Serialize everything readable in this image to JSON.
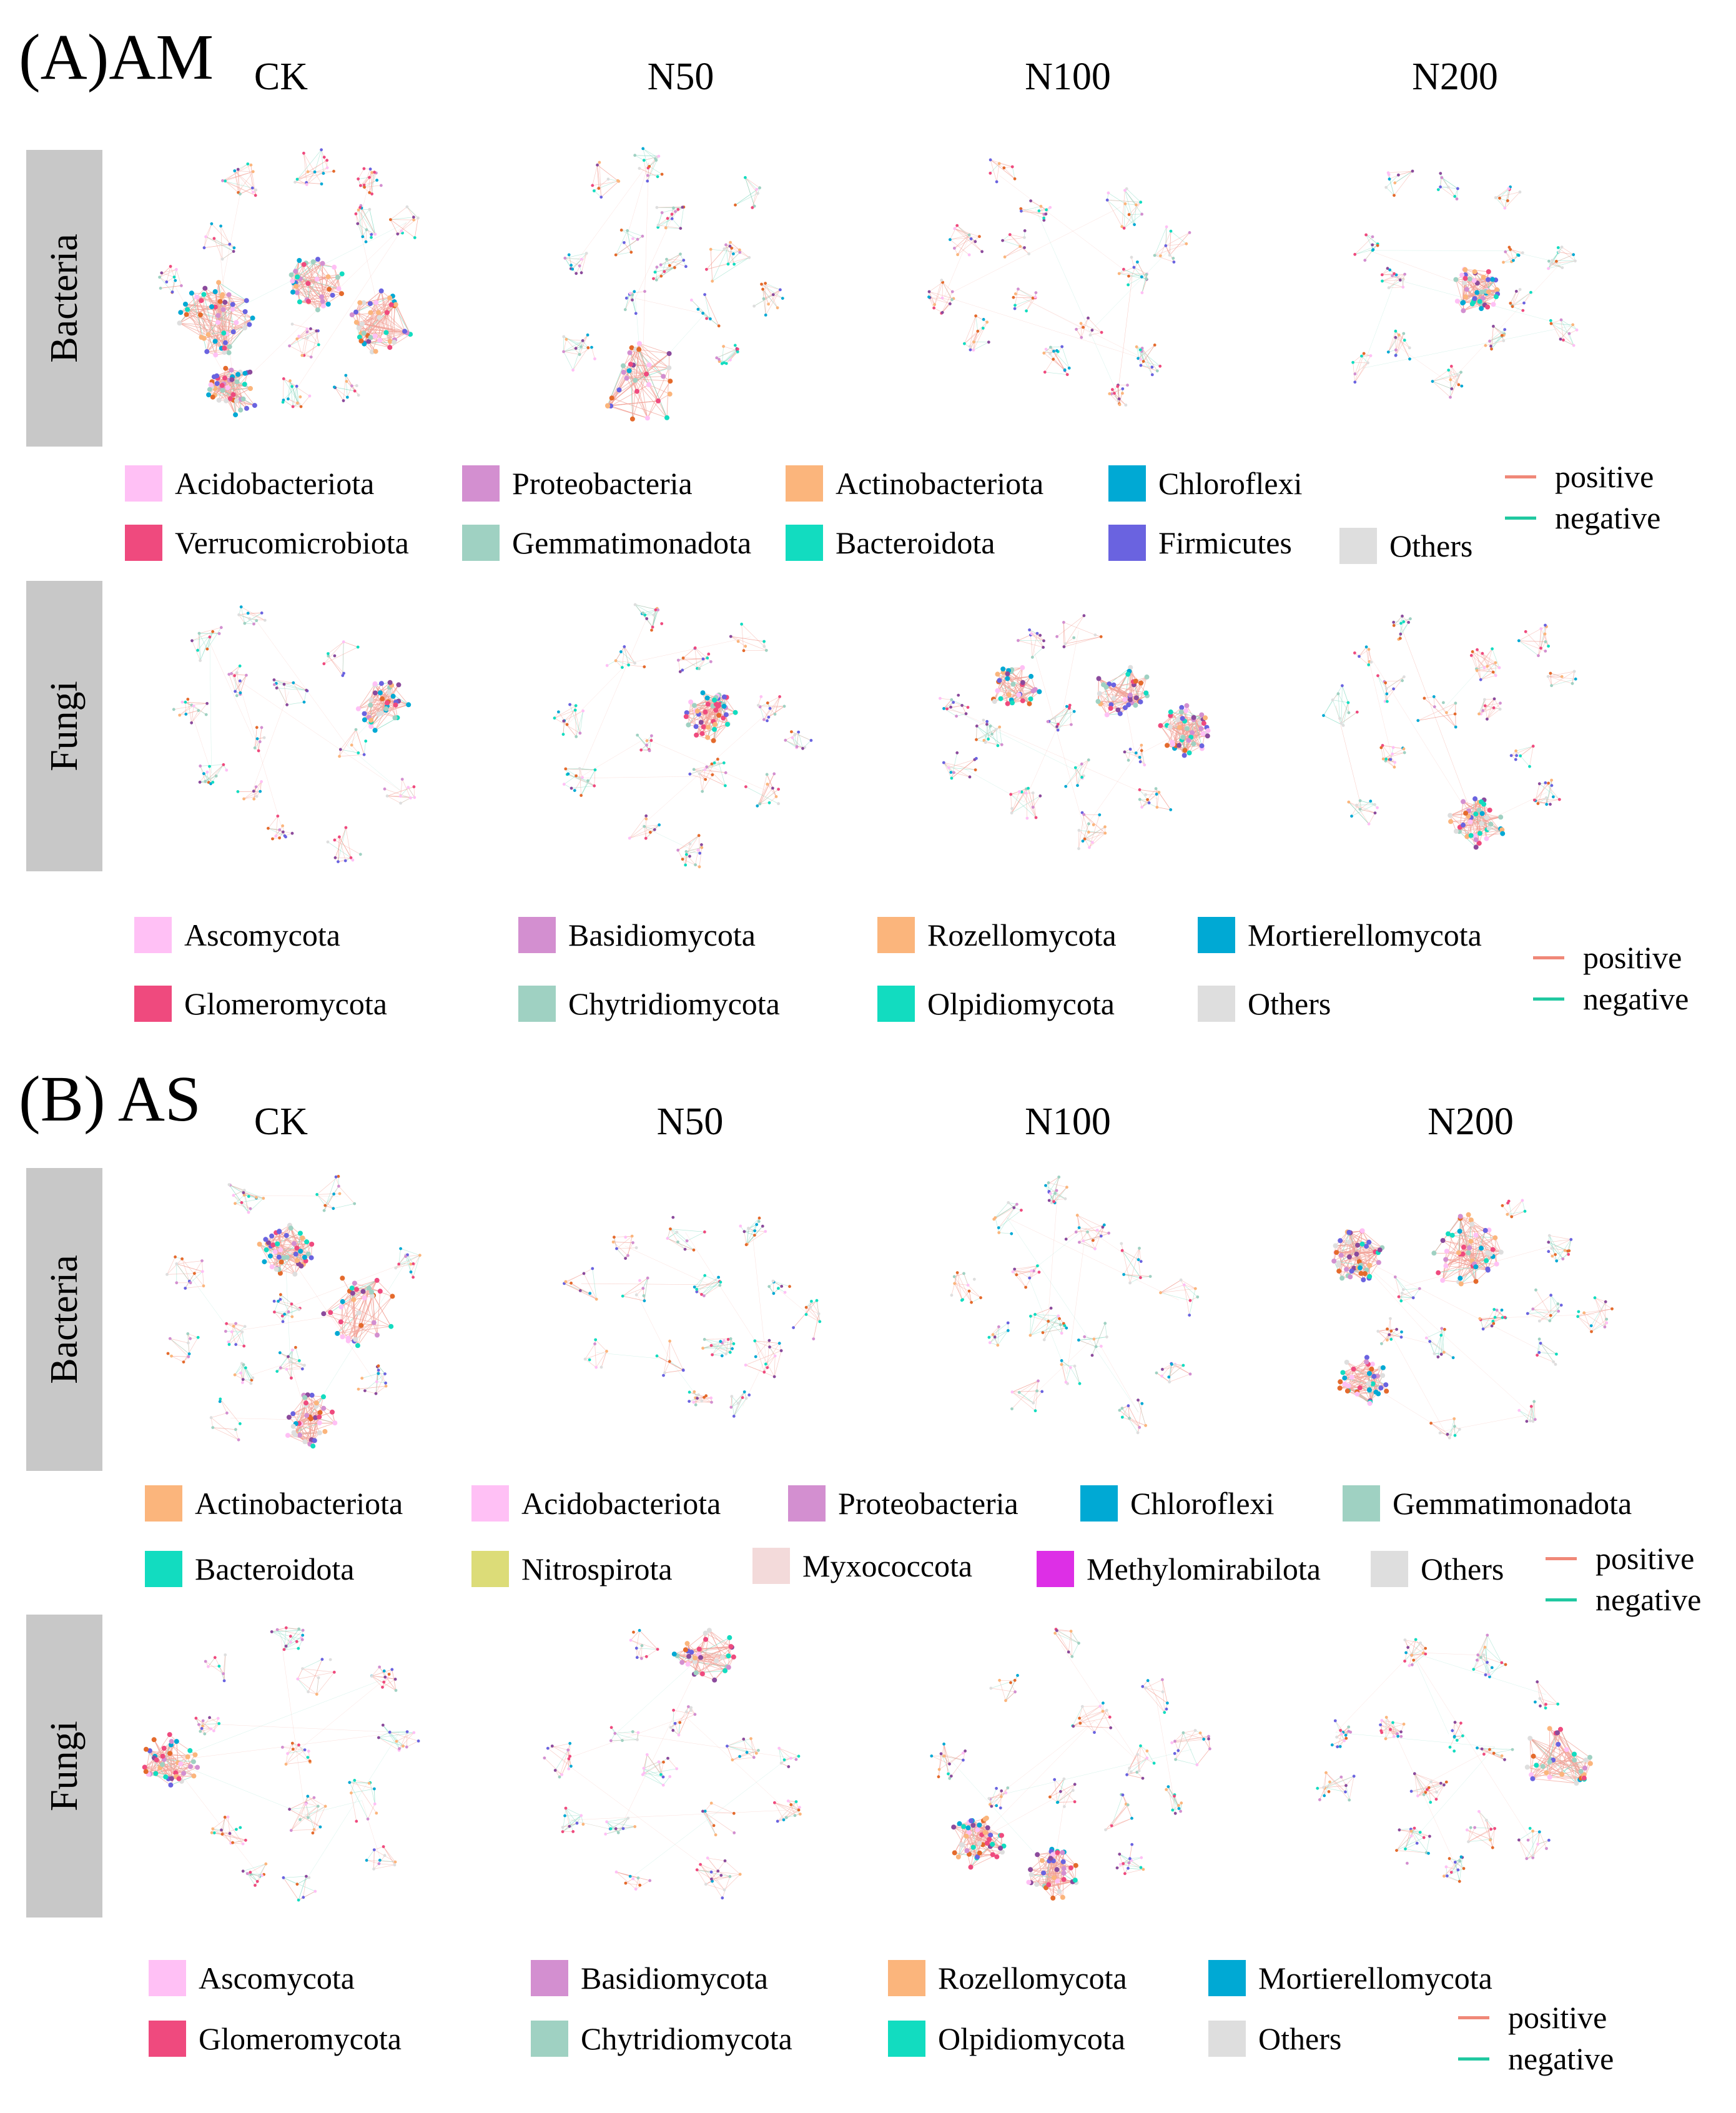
{
  "sections": [
    {
      "title": "(A)AM",
      "columns": [
        "CK",
        "N50",
        "N100",
        "N200"
      ],
      "rows": [
        {
          "label": "Bacteria",
          "legend": [
            {
              "name": "Acidobacteriota",
              "color": "#ffc0f5"
            },
            {
              "name": "Proteobacteria",
              "color": "#d38fd0"
            },
            {
              "name": "Actinobacteriota",
              "color": "#fbb57c"
            },
            {
              "name": "Chloroflexi",
              "color": "#00a9d4"
            },
            {
              "name": "Verrucomicrobiota",
              "color": "#ef4a7e"
            },
            {
              "name": "Gemmatimonadota",
              "color": "#9fd1c2"
            },
            {
              "name": "Bacteroidota",
              "color": "#12dcc0"
            },
            {
              "name": "Firmicutes",
              "color": "#6a63e0"
            },
            {
              "name": "Others",
              "color": "#dedede"
            }
          ]
        },
        {
          "label": "Fungi",
          "legend": [
            {
              "name": "Ascomycota",
              "color": "#ffc0f5"
            },
            {
              "name": "Basidiomycota",
              "color": "#d38fd0"
            },
            {
              "name": "Rozellomycota",
              "color": "#fbb57c"
            },
            {
              "name": "Mortierellomycota",
              "color": "#00a9d4"
            },
            {
              "name": "Glomeromycota",
              "color": "#ef4a7e"
            },
            {
              "name": "Chytridiomycota",
              "color": "#9fd1c2"
            },
            {
              "name": "Olpidiomycota",
              "color": "#12dcc0"
            },
            {
              "name": "Others",
              "color": "#dedede"
            }
          ]
        }
      ]
    },
    {
      "title": "(B) AS",
      "columns": [
        "CK",
        "N50",
        "N100",
        "N200"
      ],
      "rows": [
        {
          "label": "Bacteria",
          "legend": [
            {
              "name": "Actinobacteriota",
              "color": "#fbb57c"
            },
            {
              "name": "Acidobacteriota",
              "color": "#ffc0f5"
            },
            {
              "name": "Proteobacteria",
              "color": "#d38fd0"
            },
            {
              "name": "Chloroflexi",
              "color": "#00a9d4"
            },
            {
              "name": "Gemmatimonadota",
              "color": "#9fd1c2"
            },
            {
              "name": "Bacteroidota",
              "color": "#12dcc0"
            },
            {
              "name": "Nitrospirota",
              "color": "#dcdc78"
            },
            {
              "name": "Myxococcota",
              "color": "#f3dada"
            },
            {
              "name": "Methylomirabilota",
              "color": "#dd2fe6"
            },
            {
              "name": "Others",
              "color": "#dedede"
            }
          ]
        },
        {
          "label": "Fungi",
          "legend": [
            {
              "name": "Ascomycota",
              "color": "#ffc0f5"
            },
            {
              "name": "Basidiomycota",
              "color": "#d38fd0"
            },
            {
              "name": "Rozellomycota",
              "color": "#fbb57c"
            },
            {
              "name": "Mortierellomycota",
              "color": "#00a9d4"
            },
            {
              "name": "Glomeromycota",
              "color": "#ef4a7e"
            },
            {
              "name": "Chytridiomycota",
              "color": "#9fd1c2"
            },
            {
              "name": "Olpidiomycota",
              "color": "#12dcc0"
            },
            {
              "name": "Others",
              "color": "#dedede"
            }
          ]
        }
      ]
    }
  ],
  "edge_legend": {
    "positive": {
      "label": "positive",
      "color": "#f08878"
    },
    "negative": {
      "label": "negative",
      "color": "#20c8a0"
    }
  }
}
